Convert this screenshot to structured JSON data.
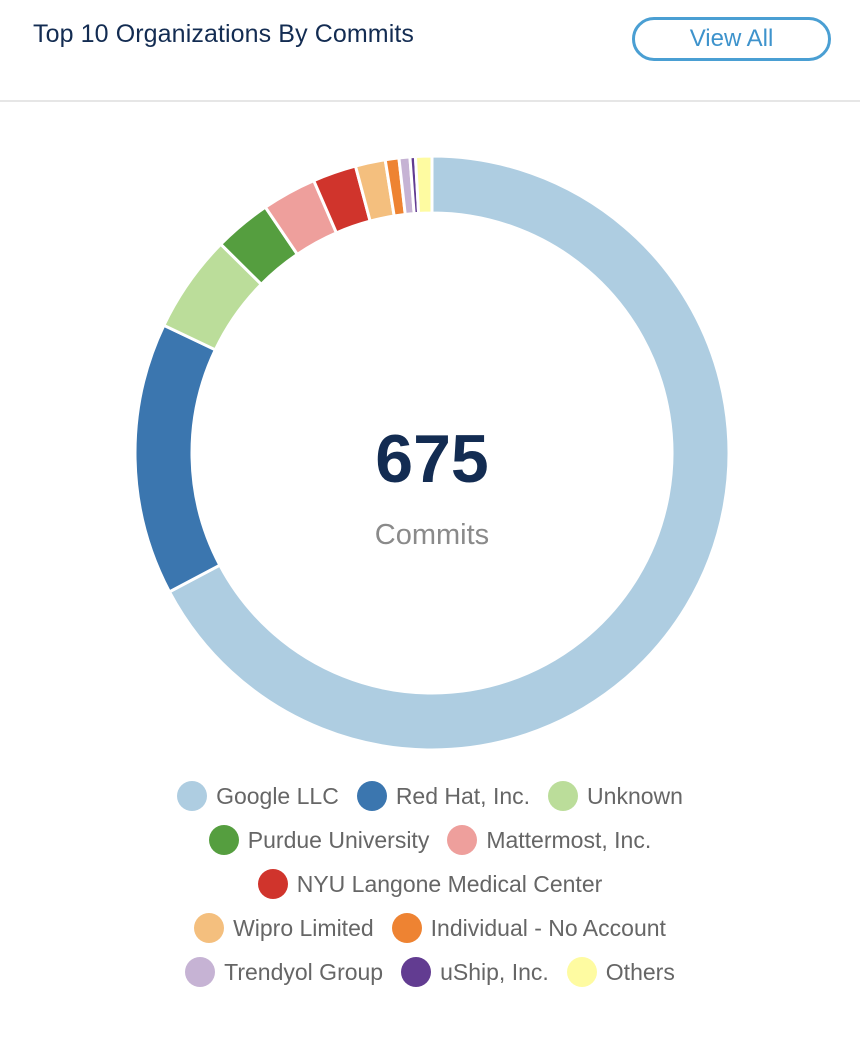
{
  "header": {
    "title": "Top 10 Organizations By Commits",
    "view_all_label": "View All"
  },
  "center": {
    "value": "675",
    "label": "Commits"
  },
  "chart_data": {
    "type": "pie",
    "donut": true,
    "total": 675,
    "legend_position": "bottom",
    "slices": [
      {
        "name": "Google LLC",
        "value": 454,
        "color": "#aecde1"
      },
      {
        "name": "Red Hat, Inc.",
        "value": 100,
        "color": "#3b76af"
      },
      {
        "name": "Unknown",
        "value": 36,
        "color": "#bbdd9a"
      },
      {
        "name": "Purdue University",
        "value": 21,
        "color": "#559e3f"
      },
      {
        "name": "Mattermost, Inc.",
        "value": 20,
        "color": "#ee9f9c"
      },
      {
        "name": "NYU Langone Medical Center",
        "value": 16,
        "color": "#d0342c"
      },
      {
        "name": "Wipro Limited",
        "value": 11,
        "color": "#f4bf7e"
      },
      {
        "name": "Individual - No Account",
        "value": 5,
        "color": "#ee8332"
      },
      {
        "name": "Trendyol Group",
        "value": 4,
        "color": "#c6b3d4"
      },
      {
        "name": "uShip, Inc.",
        "value": 2,
        "color": "#623c91"
      },
      {
        "name": "Others",
        "value": 6,
        "color": "#fefba1"
      }
    ]
  }
}
